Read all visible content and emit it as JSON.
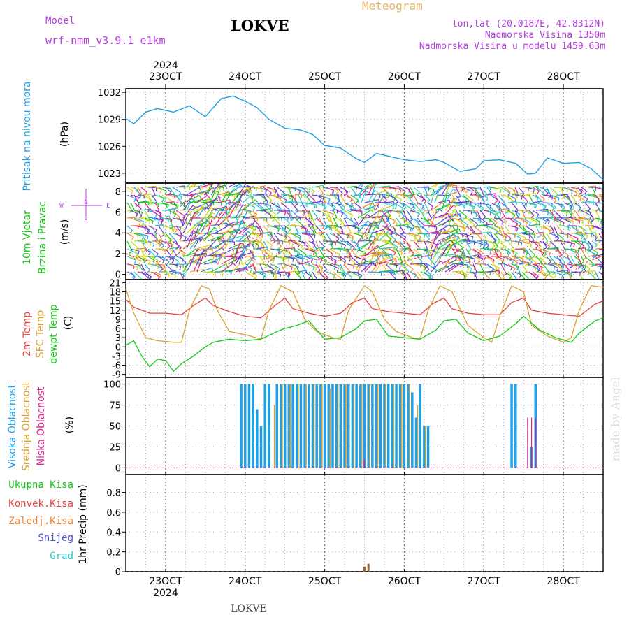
{
  "header": {
    "model_label": "Model",
    "model_name": "wrf-nmm_v3.9.1  e1km",
    "station_title": "LOKVE",
    "chart_title": "Meteogram",
    "coords": "lon,lat (20.0187E, 42.8312N)",
    "elevation": "Nadmorska Visina 1350m",
    "model_elevation": "Nadmorska Visina u modelu 1459.63m",
    "footer_station": "LOKVE",
    "watermark": "made by Angel"
  },
  "colors": {
    "pressure": "#1ea0e6",
    "temp2m": "#e6413c",
    "sfc_temp": "#dca032",
    "dewpt": "#14c814",
    "cloud_high": "#1ea0e6",
    "cloud_mid": "#dca032",
    "cloud_low": "#dc1e8c",
    "purple_text": "#b43cdc",
    "orange_text": "#e6b464",
    "grid": "#999999",
    "watermark": "#dcdcdc"
  },
  "time_axis": {
    "labels": [
      "23OCT",
      "24OCT",
      "25OCT",
      "26OCT",
      "27OCT",
      "28OCT"
    ],
    "year": "2024",
    "start_day": 22.5,
    "end_day": 28.5
  },
  "panel_labels": {
    "pressure": {
      "name": "Pritisak na nivou mora",
      "unit": "(hPa)"
    },
    "wind": {
      "name": "10m Vjetar",
      "name2": "Brzina i Pravac",
      "unit": "(m/s)",
      "compass": [
        "N",
        "W",
        "E",
        "S"
      ]
    },
    "temp": {
      "name1": "2m Temp",
      "name2": "SFC Temp",
      "name3": "dewpt Temp",
      "unit": "(C)"
    },
    "cloud": {
      "name1": "Visoka Oblacnost",
      "name2": "Srednja Oblacnost",
      "name3": "Niska Oblacnost",
      "unit": "(%)"
    },
    "precip": {
      "name": "1hr Precip (mm)",
      "legend": [
        {
          "label": "Ukupna Kisa",
          "color": "#14c814"
        },
        {
          "label": "Konvek.Kisa",
          "color": "#e6413c"
        },
        {
          "label": "Zaledj.Kisa",
          "color": "#f08232"
        },
        {
          "label": "Snijeg",
          "color": "#5050dc"
        },
        {
          "label": "Grad",
          "color": "#28c8c8"
        }
      ]
    }
  },
  "chart_data": [
    {
      "type": "line",
      "title": "Pritisak na nivou mora",
      "ylabel": "(hPa)",
      "ylim": [
        1021.9,
        1032.4
      ],
      "yticks": [
        1023,
        1026,
        1029,
        1032
      ],
      "grid": true,
      "series": [
        {
          "name": "Pritisak na nivou mora",
          "x": [
            22.5,
            22.6,
            22.75,
            22.9,
            23.1,
            23.3,
            23.5,
            23.7,
            23.85,
            24.0,
            24.15,
            24.3,
            24.5,
            24.7,
            24.85,
            25.0,
            25.2,
            25.4,
            25.5,
            25.65,
            25.8,
            26.0,
            26.2,
            26.4,
            26.5,
            26.7,
            26.9,
            27.0,
            27.2,
            27.4,
            27.55,
            27.65,
            27.8,
            28.0,
            28.2,
            28.35,
            28.5
          ],
          "values": [
            1029.1,
            1028.5,
            1029.8,
            1030.2,
            1029.8,
            1030.5,
            1029.3,
            1031.3,
            1031.6,
            1031.0,
            1030.3,
            1029.0,
            1028.0,
            1027.8,
            1027.3,
            1026.1,
            1025.8,
            1024.6,
            1024.2,
            1025.2,
            1024.9,
            1024.5,
            1024.3,
            1024.5,
            1024.2,
            1023.2,
            1023.5,
            1024.4,
            1024.5,
            1024.1,
            1022.9,
            1023.0,
            1024.7,
            1024.1,
            1024.2,
            1023.5,
            1022.3
          ]
        }
      ]
    },
    {
      "type": "line",
      "title": "10m Vjetar Brzina i Pravac",
      "ylabel": "(m/s)",
      "ylim": [
        -0.5,
        8.8
      ],
      "yticks": [
        0,
        2,
        4,
        6,
        8
      ],
      "grid": true,
      "series": [
        {
          "name": "10m Vjetar",
          "x": [
            22.5,
            22.7,
            22.9,
            23.1,
            23.3,
            23.5,
            23.7,
            23.9,
            24.1,
            24.3,
            24.5,
            24.7,
            24.9,
            25.1,
            25.3,
            25.5,
            25.7,
            25.9,
            26.1,
            26.3,
            26.5,
            26.7,
            26.9,
            27.1,
            27.3,
            27.5,
            27.7,
            27.9,
            28.1,
            28.3,
            28.5
          ],
          "values": [
            2.0,
            1.4,
            1.2,
            1.6,
            3.0,
            4.5,
            6.0,
            4.0,
            3.5,
            1.2,
            2.5,
            1.0,
            1.5,
            1.0,
            1.8,
            4.0,
            1.2,
            1.0,
            1.5,
            1.8,
            3.5,
            1.5,
            1.0,
            2.0,
            1.5,
            1.2,
            1.0,
            1.0,
            0.8,
            1.2,
            1.8
          ]
        }
      ]
    },
    {
      "type": "line",
      "title": "Temperatura",
      "ylabel": "(C)",
      "ylim": [
        -10,
        22
      ],
      "yticks": [
        -9,
        -6,
        -3,
        0,
        3,
        6,
        9,
        12,
        15,
        18,
        21
      ],
      "grid": true,
      "series": [
        {
          "name": "2m Temp",
          "x": [
            22.5,
            22.6,
            22.8,
            23.0,
            23.2,
            23.35,
            23.5,
            23.6,
            23.8,
            24.0,
            24.2,
            24.35,
            24.5,
            24.6,
            24.8,
            25.0,
            25.2,
            25.35,
            25.5,
            25.6,
            25.8,
            26.0,
            26.2,
            26.35,
            26.5,
            26.6,
            26.8,
            27.0,
            27.2,
            27.35,
            27.5,
            27.6,
            27.8,
            28.0,
            28.2,
            28.4,
            28.5
          ],
          "values": [
            15.5,
            13.0,
            11.0,
            11.0,
            10.5,
            13.5,
            16.0,
            13.5,
            11.5,
            10.0,
            9.5,
            13.0,
            16.0,
            12.5,
            11.0,
            10.0,
            11.0,
            14.5,
            16.0,
            12.5,
            11.5,
            11.0,
            10.5,
            14.0,
            16.0,
            12.5,
            11.0,
            10.5,
            10.5,
            14.5,
            16.0,
            12.0,
            11.0,
            10.5,
            10.0,
            14.0,
            15.0
          ]
        },
        {
          "name": "SFC Temp",
          "x": [
            22.5,
            22.6,
            22.75,
            22.9,
            23.1,
            23.2,
            23.3,
            23.45,
            23.55,
            23.65,
            23.8,
            24.0,
            24.2,
            24.3,
            24.45,
            24.6,
            24.75,
            24.9,
            25.1,
            25.2,
            25.3,
            25.5,
            25.6,
            25.75,
            25.9,
            26.1,
            26.2,
            26.3,
            26.45,
            26.6,
            26.8,
            27.0,
            27.1,
            27.2,
            27.35,
            27.5,
            27.6,
            27.8,
            28.0,
            28.1,
            28.2,
            28.35,
            28.5
          ],
          "values": [
            19.0,
            11.0,
            3.0,
            2.0,
            1.5,
            1.5,
            12.0,
            20.0,
            19.0,
            12.0,
            5.0,
            4.0,
            2.5,
            12.0,
            20.0,
            18.0,
            9.0,
            5.0,
            3.0,
            2.5,
            12.0,
            20.0,
            18.0,
            9.0,
            5.0,
            3.0,
            2.5,
            12.0,
            20.0,
            18.0,
            7.0,
            3.0,
            1.5,
            10.0,
            20.0,
            18.0,
            7.0,
            3.5,
            1.5,
            3.0,
            12.0,
            20.0,
            19.5
          ]
        },
        {
          "name": "dewpt Temp",
          "x": [
            22.5,
            22.6,
            22.7,
            22.8,
            22.9,
            23.0,
            23.1,
            23.2,
            23.35,
            23.5,
            23.6,
            23.8,
            24.0,
            24.2,
            24.4,
            24.5,
            24.65,
            24.8,
            25.0,
            25.2,
            25.4,
            25.5,
            25.65,
            25.8,
            26.0,
            26.2,
            26.4,
            26.5,
            26.65,
            26.8,
            27.0,
            27.2,
            27.4,
            27.5,
            27.7,
            27.9,
            28.1,
            28.2,
            28.4,
            28.5
          ],
          "values": [
            0.5,
            2.0,
            -3.0,
            -6.5,
            -4.0,
            -4.5,
            -8.0,
            -5.5,
            -3.0,
            0.0,
            1.5,
            2.5,
            2.0,
            2.5,
            5.0,
            6.0,
            7.0,
            8.5,
            2.5,
            3.0,
            6.0,
            8.5,
            9.0,
            3.5,
            3.0,
            2.5,
            5.5,
            8.5,
            9.0,
            4.5,
            2.0,
            3.5,
            7.5,
            10.0,
            5.5,
            3.0,
            1.5,
            4.5,
            8.5,
            9.5
          ]
        }
      ]
    },
    {
      "type": "bar",
      "title": "Oblacnost",
      "ylabel": "(%)",
      "ylim": [
        -8,
        108
      ],
      "yticks": [
        0,
        25,
        50,
        75,
        100
      ],
      "grid": true,
      "series": [
        {
          "name": "Visoka Oblacnost",
          "x": [
            23.95,
            24.0,
            24.05,
            24.1,
            24.15,
            24.2,
            24.25,
            24.3,
            24.4,
            24.45,
            24.5,
            24.55,
            24.6,
            24.65,
            24.7,
            24.75,
            24.8,
            24.85,
            24.9,
            24.95,
            25.0,
            25.05,
            25.1,
            25.15,
            25.2,
            25.25,
            25.3,
            25.35,
            25.4,
            25.45,
            25.5,
            25.55,
            25.6,
            25.65,
            25.7,
            25.75,
            25.8,
            25.85,
            25.9,
            25.95,
            26.0,
            26.05,
            26.1,
            26.15,
            26.2,
            26.25,
            26.3,
            27.35,
            27.4,
            27.6,
            27.65
          ],
          "values": [
            100,
            100,
            100,
            100,
            70,
            50,
            100,
            100,
            100,
            100,
            100,
            100,
            100,
            100,
            100,
            100,
            100,
            100,
            100,
            100,
            100,
            100,
            100,
            100,
            100,
            100,
            100,
            100,
            100,
            100,
            100,
            100,
            100,
            100,
            100,
            100,
            100,
            100,
            100,
            100,
            100,
            100,
            90,
            60,
            100,
            50,
            50,
            100,
            100,
            25,
            100
          ]
        },
        {
          "name": "Srednja Oblacnost",
          "x": [
            24.35,
            24.45,
            24.55,
            24.65,
            24.75,
            24.85,
            24.95,
            25.05,
            25.15,
            25.25,
            25.35,
            25.45,
            25.55,
            25.65,
            25.75,
            25.85,
            25.95,
            26.05,
            26.15,
            26.25
          ],
          "values": [
            75,
            100,
            100,
            100,
            100,
            100,
            100,
            95,
            100,
            100,
            100,
            100,
            100,
            100,
            100,
            100,
            100,
            100,
            75,
            50
          ]
        },
        {
          "name": "Niska Oblacnost",
          "x": [
            25.5,
            27.55,
            27.6,
            27.65
          ],
          "values": [
            10,
            60,
            60,
            60
          ]
        }
      ]
    },
    {
      "type": "bar",
      "title": "1hr Precip",
      "ylabel": "1hr Precip (mm)",
      "ylim": [
        0,
        0.98
      ],
      "yticks": [
        0,
        0.2,
        0.4,
        0.6,
        0.8
      ],
      "grid": true,
      "series": [
        {
          "name": "Ukupna Kisa",
          "x": [
            25.5,
            25.55
          ],
          "values": [
            0.05,
            0.08
          ]
        }
      ]
    }
  ]
}
